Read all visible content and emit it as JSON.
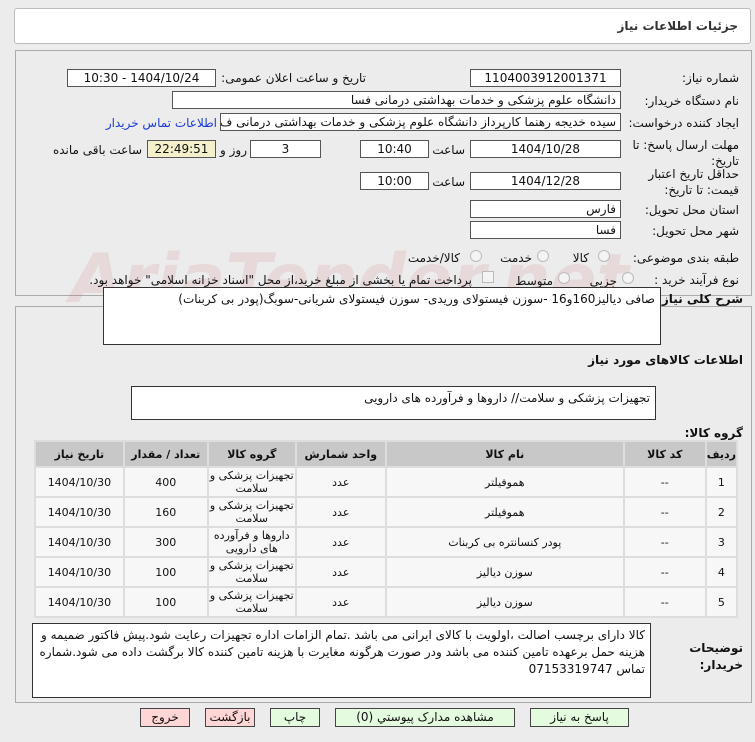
{
  "header": {
    "title": "جزئیات اطلاعات نیاز"
  },
  "watermark": "AriaTender.net",
  "form": {
    "need_number_label": "شماره نیاز:",
    "need_number": "1104003912001371",
    "announce_label": "تاریخ و ساعت اعلان عمومی:",
    "announce_value": "1404/10/24 - 10:30",
    "buyer_label": "نام دستگاه خریدار:",
    "buyer": "دانشگاه علوم پزشکی و خدمات بهداشتی درمانی فسا",
    "creator_label": "ایجاد کننده درخواست:",
    "creator": "سیده خدیجه رهنما کارپرداز دانشگاه علوم پزشکی و خدمات بهداشتی درمانی ف",
    "contact_link": "اطلاعات تماس خریدار",
    "deadline_label": "مهلت ارسال پاسخ: تا تاریخ:",
    "deadline_date": "1404/10/28",
    "time_label": "ساعت",
    "deadline_time": "10:40",
    "days": "3",
    "days_label": "روز و",
    "remaining": "22:49:51",
    "remaining_label": "ساعت باقی مانده",
    "validity_label": "حداقل تاریخ اعتبار قیمت: تا تاریخ:",
    "validity_date": "1404/12/28",
    "validity_time": "10:00",
    "province_label": "استان محل تحویل:",
    "province": "فارس",
    "city_label": "شهر محل تحویل:",
    "city": "فسا",
    "category_label": "طبقه بندی موضوعی:",
    "category_options": [
      "کالا",
      "خدمت",
      "کالا/خدمت"
    ],
    "category_selected": "کالا",
    "process_label": "نوع فرآیند خرید :",
    "process_options": [
      "جزیی",
      "متوسط"
    ],
    "process_selected": "جزیی",
    "payment_note": "پرداخت تمام یا بخشی از مبلغ خرید،از محل \"اسناد خزانه اسلامی\" خواهد بود."
  },
  "details": {
    "summary_label": "شرح کلی نیاز:",
    "summary": "صافی دیالیز160و16 -سوزن فیستولای وریدی- سوزن فیستولای شریانی-سوبگ(پودر بی کربنات)",
    "goods_title": "اطلاعات کالاهای مورد نیاز",
    "group_label": "گروه کالا:",
    "group": "تجهیزات پزشکی و سلامت// داروها و فرآورده های دارویی",
    "table": {
      "headers": [
        "ردیف",
        "کد کالا",
        "نام کالا",
        "واحد شمارش",
        "گروه کالا",
        "تعداد / مقدار",
        "تاریخ نیاز"
      ],
      "rows": [
        [
          "1",
          "--",
          "هموفیلتر",
          "عدد",
          "تجهیزات پزشکی و سلامت",
          "400",
          "1404/10/30"
        ],
        [
          "2",
          "--",
          "هموفیلتر",
          "عدد",
          "تجهیزات پزشکی و سلامت",
          "160",
          "1404/10/30"
        ],
        [
          "3",
          "--",
          "پودر کنسانتره بی کربنات",
          "عدد",
          "داروها و فرآورده های دارویی",
          "300",
          "1404/10/30"
        ],
        [
          "4",
          "--",
          "سوزن دیالیز",
          "عدد",
          "تجهیزات پزشکی و سلامت",
          "100",
          "1404/10/30"
        ],
        [
          "5",
          "--",
          "سوزن دیالیز",
          "عدد",
          "تجهیزات پزشکی و سلامت",
          "100",
          "1404/10/30"
        ]
      ]
    },
    "notes_label": "توضیحات خریدار:",
    "notes": "کالا دارای برچسب اصالت ،اولویت با کالای ایرانی می باشد .تمام الزامات اداره تجهیزات رعایت شود.پیش فاکتور ضمیمه و هزینه حمل برعهده تامین کننده می باشد ودر صورت هرگونه مغایرت با هزینه تامین کننده کالا برگشت داده می شود.شماره تماس 07153319747"
  },
  "buttons": {
    "reply": "پاسخ به نیاز",
    "attachments": "مشاهده مدارک پیوستي (0)",
    "print": "چاپ",
    "back": "بازگشت",
    "exit": "خروج"
  }
}
